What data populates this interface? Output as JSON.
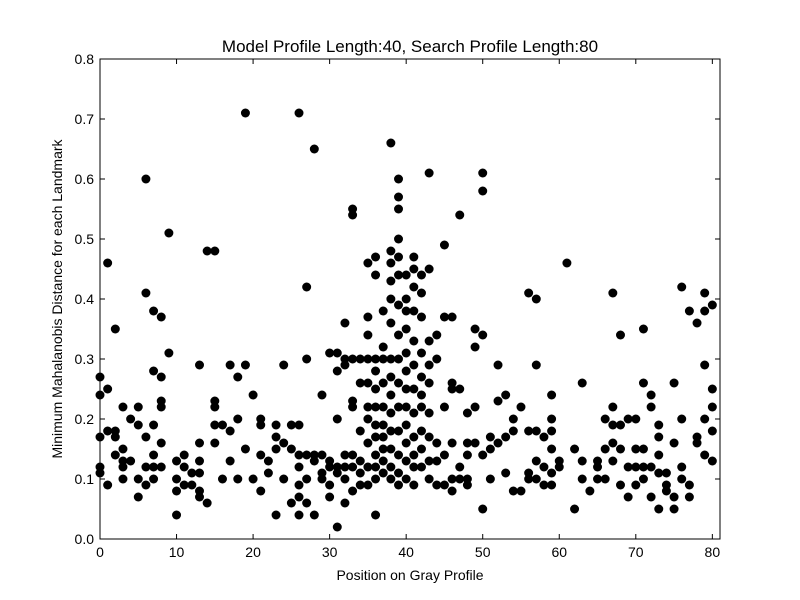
{
  "chart_data": {
    "type": "scatter",
    "title": "Model Profile Length:40, Search Profile Length:80",
    "xlabel": "Position on Gray Profile",
    "ylabel": "Minimum Mahalanobis Distance for each Landmark",
    "xlim": [
      0,
      81
    ],
    "ylim": [
      0,
      0.8
    ],
    "xticks": [
      0,
      10,
      20,
      30,
      40,
      50,
      60,
      70,
      80
    ],
    "yticks": [
      0.0,
      0.1,
      0.2,
      0.3,
      0.4,
      0.5,
      0.6,
      0.7,
      0.8
    ],
    "grid": false,
    "marker_color": "#000000",
    "points": [
      [
        0,
        0.27
      ],
      [
        0,
        0.24
      ],
      [
        0,
        0.17
      ],
      [
        0,
        0.12
      ],
      [
        0,
        0.11
      ],
      [
        1,
        0.46
      ],
      [
        1,
        0.25
      ],
      [
        1,
        0.18
      ],
      [
        1,
        0.09
      ],
      [
        2,
        0.35
      ],
      [
        2,
        0.18
      ],
      [
        2,
        0.17
      ],
      [
        2,
        0.14
      ],
      [
        3,
        0.22
      ],
      [
        3,
        0.15
      ],
      [
        3,
        0.13
      ],
      [
        3,
        0.12
      ],
      [
        3,
        0.1
      ],
      [
        4,
        0.2
      ],
      [
        4,
        0.13
      ],
      [
        5,
        0.22
      ],
      [
        5,
        0.19
      ],
      [
        5,
        0.1
      ],
      [
        5,
        0.07
      ],
      [
        6,
        0.6
      ],
      [
        6,
        0.41
      ],
      [
        6,
        0.17
      ],
      [
        6,
        0.12
      ],
      [
        6,
        0.09
      ],
      [
        7,
        0.38
      ],
      [
        7,
        0.28
      ],
      [
        7,
        0.19
      ],
      [
        7,
        0.14
      ],
      [
        7,
        0.12
      ],
      [
        7,
        0.1
      ],
      [
        8,
        0.37
      ],
      [
        8,
        0.27
      ],
      [
        8,
        0.23
      ],
      [
        8,
        0.22
      ],
      [
        8,
        0.16
      ],
      [
        8,
        0.12
      ],
      [
        9,
        0.51
      ],
      [
        9,
        0.31
      ],
      [
        10,
        0.13
      ],
      [
        10,
        0.1
      ],
      [
        10,
        0.08
      ],
      [
        10,
        0.04
      ],
      [
        11,
        0.14
      ],
      [
        11,
        0.12
      ],
      [
        11,
        0.09
      ],
      [
        12,
        0.11
      ],
      [
        12,
        0.09
      ],
      [
        13,
        0.29
      ],
      [
        13,
        0.16
      ],
      [
        13,
        0.13
      ],
      [
        13,
        0.11
      ],
      [
        13,
        0.08
      ],
      [
        13,
        0.07
      ],
      [
        14,
        0.48
      ],
      [
        14,
        0.06
      ],
      [
        15,
        0.48
      ],
      [
        15,
        0.23
      ],
      [
        15,
        0.22
      ],
      [
        15,
        0.19
      ],
      [
        15,
        0.16
      ],
      [
        16,
        0.19
      ],
      [
        16,
        0.1
      ],
      [
        17,
        0.29
      ],
      [
        17,
        0.18
      ],
      [
        17,
        0.13
      ],
      [
        18,
        0.27
      ],
      [
        18,
        0.2
      ],
      [
        18,
        0.1
      ],
      [
        19,
        0.71
      ],
      [
        19,
        0.29
      ],
      [
        19,
        0.15
      ],
      [
        20,
        0.24
      ],
      [
        20,
        0.1
      ],
      [
        21,
        0.2
      ],
      [
        21,
        0.19
      ],
      [
        21,
        0.14
      ],
      [
        21,
        0.08
      ],
      [
        22,
        0.13
      ],
      [
        22,
        0.11
      ],
      [
        23,
        0.19
      ],
      [
        23,
        0.17
      ],
      [
        23,
        0.15
      ],
      [
        23,
        0.04
      ],
      [
        24,
        0.29
      ],
      [
        24,
        0.16
      ],
      [
        24,
        0.1
      ],
      [
        25,
        0.19
      ],
      [
        25,
        0.15
      ],
      [
        25,
        0.06
      ],
      [
        26,
        0.71
      ],
      [
        26,
        0.19
      ],
      [
        26,
        0.14
      ],
      [
        26,
        0.12
      ],
      [
        26,
        0.09
      ],
      [
        26,
        0.07
      ],
      [
        26,
        0.04
      ],
      [
        27,
        0.42
      ],
      [
        27,
        0.3
      ],
      [
        27,
        0.14
      ],
      [
        27,
        0.1
      ],
      [
        27,
        0.06
      ],
      [
        28,
        0.65
      ],
      [
        28,
        0.14
      ],
      [
        28,
        0.13
      ],
      [
        28,
        0.04
      ],
      [
        29,
        0.24
      ],
      [
        29,
        0.14
      ],
      [
        29,
        0.11
      ],
      [
        29,
        0.1
      ],
      [
        30,
        0.31
      ],
      [
        30,
        0.13
      ],
      [
        30,
        0.12
      ],
      [
        30,
        0.09
      ],
      [
        30,
        0.07
      ],
      [
        31,
        0.31
      ],
      [
        31,
        0.28
      ],
      [
        31,
        0.2
      ],
      [
        31,
        0.12
      ],
      [
        31,
        0.11
      ],
      [
        31,
        0.02
      ],
      [
        32,
        0.36
      ],
      [
        32,
        0.3
      ],
      [
        32,
        0.29
      ],
      [
        32,
        0.14
      ],
      [
        32,
        0.12
      ],
      [
        32,
        0.1
      ],
      [
        32,
        0.06
      ],
      [
        33,
        0.55
      ],
      [
        33,
        0.54
      ],
      [
        33,
        0.3
      ],
      [
        33,
        0.23
      ],
      [
        33,
        0.22
      ],
      [
        33,
        0.14
      ],
      [
        33,
        0.12
      ],
      [
        33,
        0.08
      ],
      [
        34,
        0.3
      ],
      [
        34,
        0.26
      ],
      [
        34,
        0.18
      ],
      [
        34,
        0.13
      ],
      [
        34,
        0.11
      ],
      [
        34,
        0.09
      ],
      [
        35,
        0.46
      ],
      [
        35,
        0.37
      ],
      [
        35,
        0.34
      ],
      [
        35,
        0.3
      ],
      [
        35,
        0.26
      ],
      [
        35,
        0.22
      ],
      [
        35,
        0.2
      ],
      [
        35,
        0.16
      ],
      [
        35,
        0.12
      ],
      [
        35,
        0.09
      ],
      [
        36,
        0.47
      ],
      [
        36,
        0.44
      ],
      [
        36,
        0.3
      ],
      [
        36,
        0.28
      ],
      [
        36,
        0.25
      ],
      [
        36,
        0.22
      ],
      [
        36,
        0.19
      ],
      [
        36,
        0.17
      ],
      [
        36,
        0.14
      ],
      [
        36,
        0.12
      ],
      [
        36,
        0.1
      ],
      [
        36,
        0.04
      ],
      [
        37,
        0.38
      ],
      [
        37,
        0.32
      ],
      [
        37,
        0.3
      ],
      [
        37,
        0.26
      ],
      [
        37,
        0.22
      ],
      [
        37,
        0.19
      ],
      [
        37,
        0.17
      ],
      [
        37,
        0.15
      ],
      [
        37,
        0.13
      ],
      [
        37,
        0.11
      ],
      [
        38,
        0.66
      ],
      [
        38,
        0.48
      ],
      [
        38,
        0.46
      ],
      [
        38,
        0.43
      ],
      [
        38,
        0.4
      ],
      [
        38,
        0.36
      ],
      [
        38,
        0.3
      ],
      [
        38,
        0.27
      ],
      [
        38,
        0.24
      ],
      [
        38,
        0.21
      ],
      [
        38,
        0.18
      ],
      [
        38,
        0.15
      ],
      [
        38,
        0.12
      ],
      [
        38,
        0.1
      ],
      [
        39,
        0.6
      ],
      [
        39,
        0.57
      ],
      [
        39,
        0.55
      ],
      [
        39,
        0.5
      ],
      [
        39,
        0.47
      ],
      [
        39,
        0.44
      ],
      [
        39,
        0.39
      ],
      [
        39,
        0.34
      ],
      [
        39,
        0.3
      ],
      [
        39,
        0.26
      ],
      [
        39,
        0.22
      ],
      [
        39,
        0.18
      ],
      [
        39,
        0.14
      ],
      [
        39,
        0.11
      ],
      [
        39,
        0.09
      ],
      [
        40,
        0.44
      ],
      [
        40,
        0.4
      ],
      [
        40,
        0.38
      ],
      [
        40,
        0.35
      ],
      [
        40,
        0.31
      ],
      [
        40,
        0.28
      ],
      [
        40,
        0.25
      ],
      [
        40,
        0.22
      ],
      [
        40,
        0.19
      ],
      [
        40,
        0.16
      ],
      [
        40,
        0.13
      ],
      [
        40,
        0.1
      ],
      [
        41,
        0.47
      ],
      [
        41,
        0.45
      ],
      [
        41,
        0.42
      ],
      [
        41,
        0.38
      ],
      [
        41,
        0.33
      ],
      [
        41,
        0.29
      ],
      [
        41,
        0.25
      ],
      [
        41,
        0.21
      ],
      [
        41,
        0.17
      ],
      [
        41,
        0.14
      ],
      [
        41,
        0.12
      ],
      [
        41,
        0.09
      ],
      [
        42,
        0.44
      ],
      [
        42,
        0.41
      ],
      [
        42,
        0.37
      ],
      [
        42,
        0.31
      ],
      [
        42,
        0.27
      ],
      [
        42,
        0.24
      ],
      [
        42,
        0.22
      ],
      [
        42,
        0.18
      ],
      [
        42,
        0.15
      ],
      [
        42,
        0.12
      ],
      [
        43,
        0.61
      ],
      [
        43,
        0.45
      ],
      [
        43,
        0.33
      ],
      [
        43,
        0.29
      ],
      [
        43,
        0.26
      ],
      [
        43,
        0.21
      ],
      [
        43,
        0.17
      ],
      [
        43,
        0.13
      ],
      [
        43,
        0.1
      ],
      [
        44,
        0.34
      ],
      [
        44,
        0.3
      ],
      [
        44,
        0.16
      ],
      [
        44,
        0.13
      ],
      [
        44,
        0.09
      ],
      [
        45,
        0.49
      ],
      [
        45,
        0.37
      ],
      [
        45,
        0.22
      ],
      [
        45,
        0.14
      ],
      [
        45,
        0.09
      ],
      [
        46,
        0.37
      ],
      [
        46,
        0.26
      ],
      [
        46,
        0.25
      ],
      [
        46,
        0.16
      ],
      [
        46,
        0.1
      ],
      [
        46,
        0.08
      ],
      [
        47,
        0.54
      ],
      [
        47,
        0.25
      ],
      [
        47,
        0.12
      ],
      [
        47,
        0.1
      ],
      [
        48,
        0.21
      ],
      [
        48,
        0.16
      ],
      [
        48,
        0.14
      ],
      [
        48,
        0.1
      ],
      [
        48,
        0.09
      ],
      [
        49,
        0.35
      ],
      [
        49,
        0.32
      ],
      [
        49,
        0.22
      ],
      [
        49,
        0.16
      ],
      [
        50,
        0.61
      ],
      [
        50,
        0.58
      ],
      [
        50,
        0.34
      ],
      [
        50,
        0.14
      ],
      [
        50,
        0.05
      ],
      [
        51,
        0.17
      ],
      [
        51,
        0.15
      ],
      [
        51,
        0.1
      ],
      [
        52,
        0.29
      ],
      [
        52,
        0.23
      ],
      [
        52,
        0.16
      ],
      [
        53,
        0.24
      ],
      [
        53,
        0.17
      ],
      [
        53,
        0.11
      ],
      [
        54,
        0.2
      ],
      [
        54,
        0.18
      ],
      [
        54,
        0.08
      ],
      [
        55,
        0.22
      ],
      [
        55,
        0.08
      ],
      [
        56,
        0.41
      ],
      [
        56,
        0.18
      ],
      [
        56,
        0.11
      ],
      [
        56,
        0.1
      ],
      [
        57,
        0.4
      ],
      [
        57,
        0.29
      ],
      [
        57,
        0.18
      ],
      [
        57,
        0.13
      ],
      [
        57,
        0.1
      ],
      [
        58,
        0.17
      ],
      [
        58,
        0.12
      ],
      [
        58,
        0.09
      ],
      [
        59,
        0.24
      ],
      [
        59,
        0.2
      ],
      [
        59,
        0.18
      ],
      [
        59,
        0.15
      ],
      [
        59,
        0.11
      ],
      [
        59,
        0.09
      ],
      [
        60,
        0.13
      ],
      [
        60,
        0.12
      ],
      [
        61,
        0.46
      ],
      [
        62,
        0.15
      ],
      [
        62,
        0.05
      ],
      [
        63,
        0.26
      ],
      [
        63,
        0.13
      ],
      [
        63,
        0.1
      ],
      [
        64,
        0.08
      ],
      [
        65,
        0.13
      ],
      [
        65,
        0.12
      ],
      [
        65,
        0.1
      ],
      [
        66,
        0.2
      ],
      [
        66,
        0.15
      ],
      [
        66,
        0.1
      ],
      [
        67,
        0.41
      ],
      [
        67,
        0.22
      ],
      [
        67,
        0.19
      ],
      [
        67,
        0.16
      ],
      [
        67,
        0.13
      ],
      [
        68,
        0.34
      ],
      [
        68,
        0.19
      ],
      [
        68,
        0.15
      ],
      [
        68,
        0.09
      ],
      [
        69,
        0.2
      ],
      [
        69,
        0.12
      ],
      [
        69,
        0.07
      ],
      [
        70,
        0.2
      ],
      [
        70,
        0.15
      ],
      [
        70,
        0.12
      ],
      [
        70,
        0.09
      ],
      [
        71,
        0.35
      ],
      [
        71,
        0.26
      ],
      [
        71,
        0.15
      ],
      [
        71,
        0.12
      ],
      [
        71,
        0.1
      ],
      [
        72,
        0.24
      ],
      [
        72,
        0.22
      ],
      [
        72,
        0.12
      ],
      [
        72,
        0.07
      ],
      [
        73,
        0.19
      ],
      [
        73,
        0.17
      ],
      [
        73,
        0.14
      ],
      [
        73,
        0.11
      ],
      [
        73,
        0.05
      ],
      [
        74,
        0.11
      ],
      [
        74,
        0.09
      ],
      [
        74,
        0.08
      ],
      [
        75,
        0.26
      ],
      [
        75,
        0.16
      ],
      [
        75,
        0.07
      ],
      [
        75,
        0.05
      ],
      [
        76,
        0.42
      ],
      [
        76,
        0.2
      ],
      [
        76,
        0.12
      ],
      [
        76,
        0.1
      ],
      [
        77,
        0.38
      ],
      [
        77,
        0.09
      ],
      [
        77,
        0.07
      ],
      [
        78,
        0.36
      ],
      [
        78,
        0.17
      ],
      [
        78,
        0.16
      ],
      [
        79,
        0.41
      ],
      [
        79,
        0.38
      ],
      [
        79,
        0.29
      ],
      [
        79,
        0.2
      ],
      [
        79,
        0.14
      ],
      [
        80,
        0.39
      ],
      [
        80,
        0.25
      ],
      [
        80,
        0.22
      ],
      [
        80,
        0.18
      ],
      [
        80,
        0.13
      ]
    ]
  }
}
